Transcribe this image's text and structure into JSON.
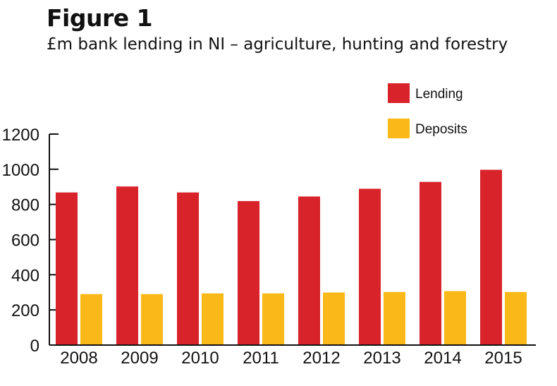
{
  "figure": {
    "title": "Figure 1",
    "subtitle": "£m bank lending in NI – agriculture, hunting and forestry"
  },
  "colors": {
    "lending": "#d9232a",
    "deposits": "#fbb919",
    "axis": "#111111"
  },
  "chart_data": {
    "type": "bar",
    "title": "Figure 1",
    "subtitle": "£m bank lending in NI – agriculture, hunting and forestry",
    "xlabel": "",
    "ylabel": "",
    "categories": [
      "2008",
      "2009",
      "2010",
      "2011",
      "2012",
      "2013",
      "2014",
      "2015"
    ],
    "series": [
      {
        "name": "Lending",
        "values": [
          868,
          902,
          868,
          819,
          845,
          889,
          928,
          997
        ]
      },
      {
        "name": "Deposits",
        "values": [
          290,
          290,
          294,
          294,
          299,
          302,
          307,
          302
        ]
      }
    ],
    "ylim": [
      0,
      1200
    ],
    "yticks": [
      "0",
      "200",
      "400",
      "600",
      "800",
      "1000",
      "1200"
    ],
    "grid": false,
    "legend_position": "top-right"
  }
}
